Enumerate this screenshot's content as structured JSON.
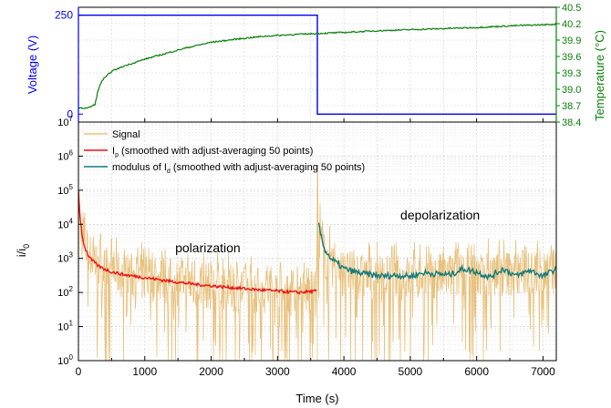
{
  "chart_data": [
    {
      "type": "line",
      "panel": "top",
      "xlim": [
        0,
        7200
      ],
      "ylabel_left": "Voltage (V)",
      "ylabel_right": "Temperature (°C)",
      "yticks_left": [
        "0",
        "250"
      ],
      "ylim_left": [
        -20,
        270
      ],
      "yticks_right": [
        "38.4",
        "38.7",
        "39.0",
        "39.3",
        "39.6",
        "39.9",
        "40.2",
        "40.5"
      ],
      "ylim_right": [
        38.4,
        40.5
      ],
      "grid": true,
      "colors": {
        "voltage": "#0000ee",
        "temperature": "#0a7d0a"
      },
      "series": [
        {
          "axis": "left",
          "x": [
            0,
            3600,
            3600,
            7200
          ],
          "y": [
            250,
            250,
            0,
            0
          ]
        },
        {
          "axis": "right",
          "x": [
            0,
            150,
            250,
            290,
            350,
            500,
            700,
            1000,
            1300,
            1600,
            2000,
            2400,
            2800,
            3200,
            3600,
            4000,
            4500,
            5000,
            5500,
            6000,
            6500,
            7000,
            7200
          ],
          "y": [
            38.65,
            38.66,
            38.72,
            38.95,
            39.15,
            39.33,
            39.43,
            39.55,
            39.65,
            39.75,
            39.86,
            39.92,
            39.97,
            40.0,
            40.02,
            40.04,
            40.07,
            40.09,
            40.11,
            40.13,
            40.16,
            40.18,
            40.19
          ]
        }
      ]
    },
    {
      "type": "line",
      "panel": "bottom",
      "xlabel": "Time (s)",
      "ylabel": "i/i",
      "ylabel_sub": "0",
      "xlim": [
        0,
        7200
      ],
      "xticks": [
        "0",
        "1000",
        "2000",
        "3000",
        "4000",
        "5000",
        "6000",
        "7000"
      ],
      "y_scale": "log",
      "ylim": [
        1,
        10000000
      ],
      "ytick_bases": [
        "10",
        "10",
        "10",
        "10",
        "10",
        "10",
        "10",
        "10"
      ],
      "ytick_exps": [
        "0",
        "1",
        "2",
        "3",
        "4",
        "5",
        "6",
        "7"
      ],
      "grid": true,
      "legend_placement": "top-left",
      "legend": [
        {
          "text": "Signal",
          "sub": "",
          "suffix": "",
          "color": "#e8c27e"
        },
        {
          "text": "I",
          "sub": "p",
          "suffix": " (smoothed with adjust-averaging 50 points)",
          "color": "#ee1111"
        },
        {
          "text": "modulus of I",
          "sub": "d",
          "suffix": " (smoothed with adjust-averaging 50 points)",
          "color": "#117a7a"
        }
      ],
      "annotations": [
        {
          "text": "polarization",
          "x": 1950,
          "y": 1500
        },
        {
          "text": "depolarization",
          "x": 5450,
          "y": 14000
        }
      ],
      "series": [
        {
          "name": "Signal",
          "x": [
            0,
            20,
            60,
            150,
            300,
            500,
            800,
            1200,
            1600,
            2000,
            2400,
            2800,
            3200,
            3590,
            3600,
            3620,
            3700,
            3900,
            4200,
            4600,
            5000,
            5400,
            5800,
            6200,
            6600,
            7000,
            7200
          ],
          "y": [
            100000,
            20000,
            4000,
            1500,
            700,
            450,
            350,
            280,
            220,
            180,
            150,
            130,
            110,
            100,
            400000,
            8000,
            1500,
            500,
            350,
            300,
            320,
            350,
            380,
            420,
            450,
            500,
            500
          ]
        },
        {
          "name": "Ip",
          "x": [
            0,
            20,
            60,
            100,
            150,
            200,
            300,
            400,
            500,
            700,
            900,
            1200,
            1500,
            1800,
            2100,
            2400,
            2700,
            3000,
            3300,
            3590
          ],
          "y": [
            100000,
            20000,
            4000,
            2000,
            1200,
            900,
            600,
            480,
            400,
            330,
            290,
            240,
            200,
            170,
            150,
            135,
            120,
            110,
            100,
            110
          ]
        },
        {
          "name": "modulus of Id",
          "x": [
            3620,
            3650,
            3700,
            3800,
            3900,
            4000,
            4200,
            4400,
            4600,
            4800,
            5000,
            5200,
            5400,
            5600,
            5800,
            6000,
            6200,
            6400,
            6600,
            6800,
            7000,
            7200
          ],
          "y": [
            10000,
            5000,
            2000,
            1000,
            700,
            500,
            380,
            330,
            300,
            320,
            300,
            380,
            350,
            330,
            500,
            400,
            280,
            500,
            300,
            450,
            300,
            500
          ]
        }
      ]
    }
  ]
}
